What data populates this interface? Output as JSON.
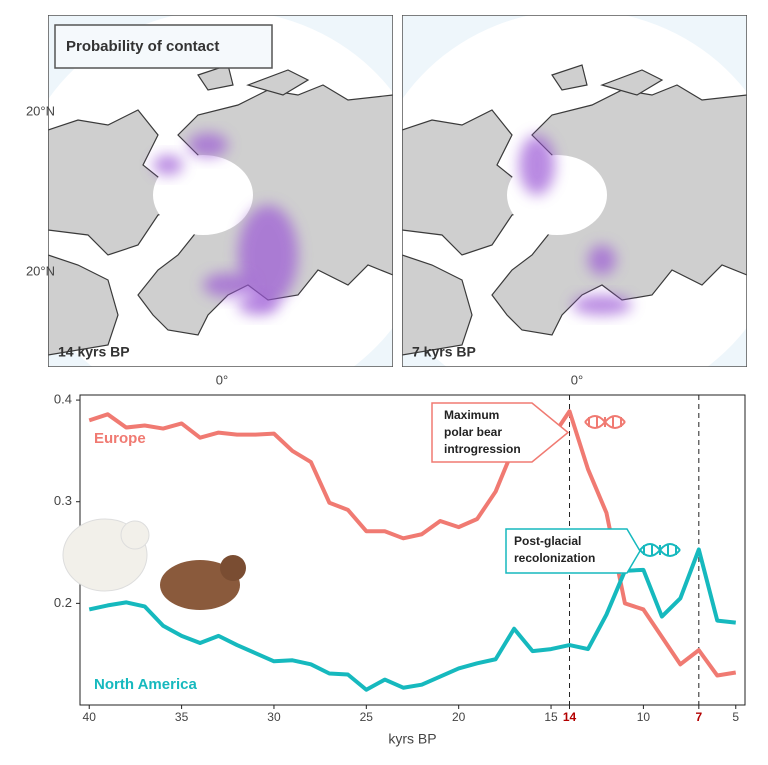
{
  "panels": [
    {
      "label": "14 kyrs BP",
      "lat_labels": [
        "20°N",
        "20°N"
      ],
      "lon_label": "0°"
    },
    {
      "label": "7 kyrs BP",
      "lon_label": "0°"
    }
  ],
  "legend_title": "Probability of contact",
  "chart_data": {
    "type": "line",
    "x_label": "kyrs BP",
    "x": [
      40,
      39,
      38,
      37,
      36,
      35,
      34,
      33,
      32,
      31,
      30,
      29,
      28,
      27,
      26,
      25,
      24,
      23,
      22,
      21,
      20,
      19,
      18,
      17,
      16,
      15,
      14,
      13,
      12,
      11,
      10,
      9,
      8,
      7,
      6,
      5
    ],
    "series": [
      {
        "name": "Europe",
        "color": "#f07a72",
        "values": [
          0.38,
          0.386,
          0.373,
          0.375,
          0.372,
          0.377,
          0.363,
          0.368,
          0.366,
          0.366,
          0.367,
          0.35,
          0.339,
          0.299,
          0.292,
          0.271,
          0.271,
          0.264,
          0.268,
          0.281,
          0.275,
          0.283,
          0.31,
          0.354,
          0.358,
          0.362,
          0.389,
          0.332,
          0.289,
          0.2,
          0.194,
          0.167,
          0.14,
          0.154,
          0.129,
          0.132
        ]
      },
      {
        "name": "North America",
        "color": "#16b9be",
        "values": [
          0.194,
          0.198,
          0.201,
          0.197,
          0.178,
          0.168,
          0.161,
          0.168,
          0.159,
          0.151,
          0.143,
          0.144,
          0.14,
          0.131,
          0.13,
          0.115,
          0.125,
          0.117,
          0.12,
          0.128,
          0.136,
          0.141,
          0.145,
          0.175,
          0.153,
          0.155,
          0.159,
          0.155,
          0.189,
          0.232,
          0.233,
          0.187,
          0.205,
          0.253,
          0.183,
          0.181
        ]
      }
    ],
    "xlim": [
      40.5,
      4.5
    ],
    "xticks": [
      40,
      35,
      30,
      25,
      20,
      15,
      14,
      10,
      7,
      5
    ],
    "ylim": [
      0.1,
      0.405
    ],
    "yticks": [
      0.2,
      0.3,
      0.4
    ],
    "vlines": [
      14,
      7
    ],
    "highlight_color": "#b30000",
    "annotations": [
      {
        "lines": [
          "Maximum",
          "polar bear",
          "introgression"
        ],
        "color": "#f07a72"
      },
      {
        "lines": [
          "Post-glacial",
          "recolonization"
        ],
        "color": "#16b9be"
      }
    ]
  }
}
